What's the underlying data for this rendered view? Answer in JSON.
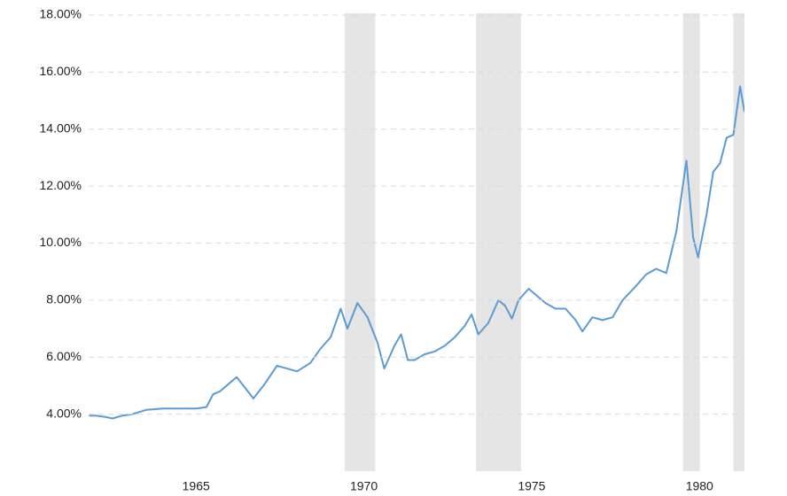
{
  "chart_data": {
    "type": "line",
    "xlim": [
      1962.29,
      1981.83
    ],
    "xticks": [
      1965,
      1970,
      1975,
      1980
    ],
    "ylim": [
      2,
      18
    ],
    "yticks": [
      {
        "value": 4,
        "label": "4.00%"
      },
      {
        "value": 6,
        "label": "6.00%"
      },
      {
        "value": 8,
        "label": "8.00%"
      },
      {
        "value": 10,
        "label": "10.00%"
      },
      {
        "value": 12,
        "label": "12.00%"
      },
      {
        "value": 14,
        "label": "14.00%"
      },
      {
        "value": 16,
        "label": "16.00%"
      },
      {
        "value": 18,
        "label": "18.00%"
      }
    ],
    "grid": true,
    "recession_color": "#e5e5e5",
    "recessions": [
      [
        1969.92,
        1970.83
      ],
      [
        1973.83,
        1975.17
      ],
      [
        1980.0,
        1980.5
      ],
      [
        1981.5,
        1982.83
      ]
    ],
    "series": [
      {
        "color": "#5b9bd5",
        "x": [
          1962.3,
          1962.5,
          1962.8,
          1963.0,
          1963.3,
          1963.6,
          1964.0,
          1964.5,
          1965.0,
          1965.5,
          1965.8,
          1966.0,
          1966.2,
          1966.7,
          1966.9,
          1967.2,
          1967.5,
          1967.9,
          1968.2,
          1968.5,
          1968.9,
          1969.2,
          1969.5,
          1969.8,
          1970.0,
          1970.3,
          1970.6,
          1970.9,
          1971.1,
          1971.4,
          1971.6,
          1971.8,
          1972.0,
          1972.3,
          1972.6,
          1972.9,
          1973.2,
          1973.5,
          1973.7,
          1973.9,
          1974.2,
          1974.5,
          1974.7,
          1974.9,
          1975.1,
          1975.4,
          1975.7,
          1975.9,
          1976.2,
          1976.5,
          1976.8,
          1977.0,
          1977.3,
          1977.6,
          1977.9,
          1978.2,
          1978.6,
          1978.9,
          1979.2,
          1979.5,
          1979.8,
          1980.1,
          1980.3,
          1980.45,
          1980.7,
          1980.9,
          1981.1,
          1981.3,
          1981.5,
          1981.7,
          1981.83
        ],
        "values": [
          3.95,
          3.95,
          3.9,
          3.85,
          3.95,
          4.0,
          4.15,
          4.2,
          4.2,
          4.2,
          4.25,
          4.7,
          4.8,
          5.3,
          5.0,
          4.55,
          5.0,
          5.7,
          5.6,
          5.5,
          5.8,
          6.3,
          6.7,
          7.7,
          7.0,
          7.9,
          7.4,
          6.5,
          5.6,
          6.4,
          6.8,
          5.9,
          5.9,
          6.1,
          6.2,
          6.4,
          6.7,
          7.1,
          7.5,
          6.8,
          7.2,
          8.0,
          7.8,
          7.35,
          8.0,
          8.4,
          8.1,
          7.9,
          7.7,
          7.7,
          7.3,
          6.9,
          7.4,
          7.3,
          7.4,
          8.0,
          8.5,
          8.9,
          9.1,
          8.95,
          10.4,
          12.9,
          10.2,
          9.5,
          11.0,
          12.5,
          12.8,
          13.7,
          13.8,
          15.5,
          14.6
        ]
      }
    ]
  }
}
